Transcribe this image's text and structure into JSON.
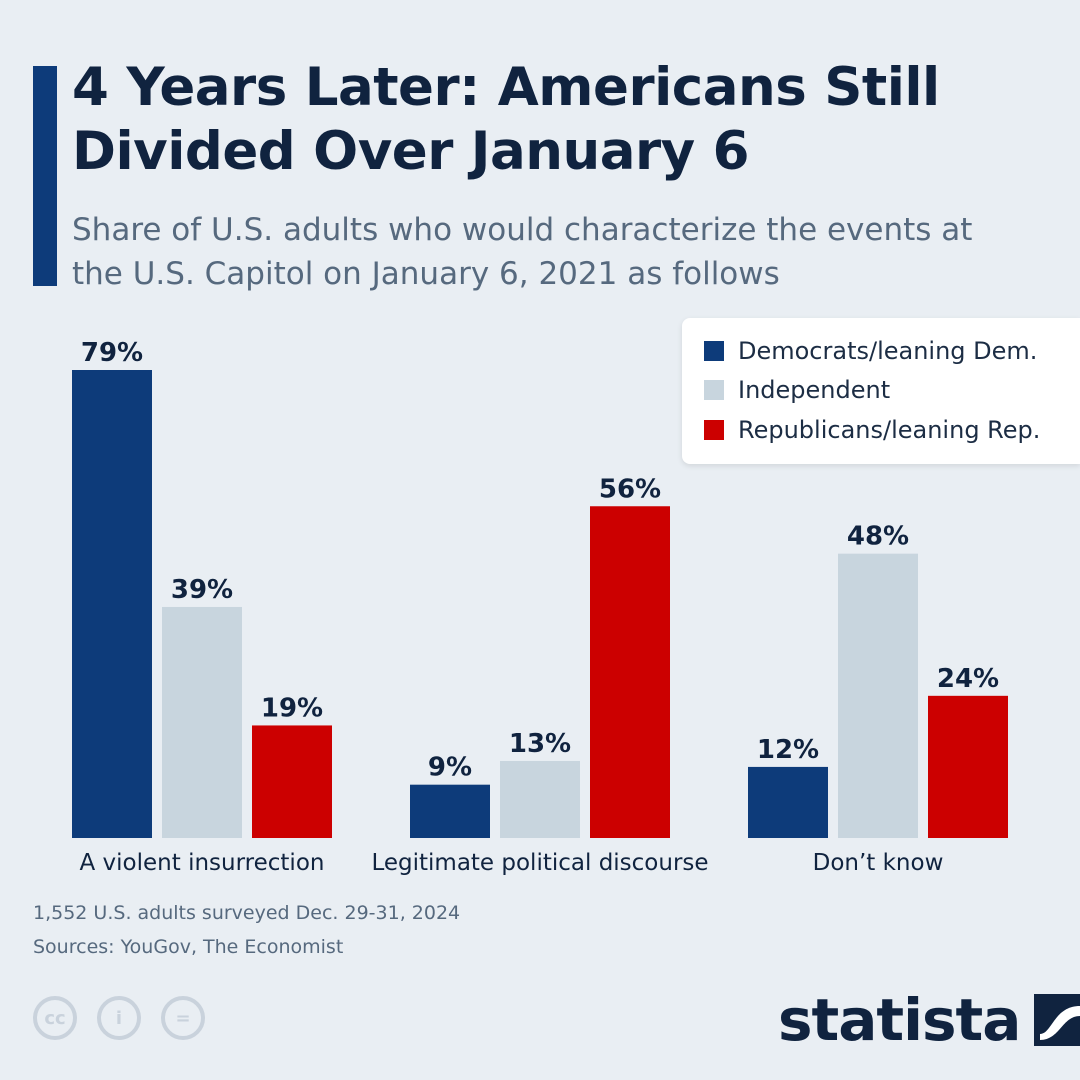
{
  "header": {
    "title": "4 Years Later: Americans Still Divided Over January 6",
    "subtitle": "Share of U.S. adults who would characterize the events at the U.S. Capitol on January 6, 2021 as follows"
  },
  "legend": {
    "items": [
      {
        "label": "Democrats/leaning Dem.",
        "color": "#0d3b7a"
      },
      {
        "label": "Independent",
        "color": "#c8d5de"
      },
      {
        "label": "Republicans/leaning Rep.",
        "color": "#cc0000"
      }
    ]
  },
  "chart_data": {
    "type": "bar",
    "title": "4 Years Later: Americans Still Divided Over January 6",
    "categories": [
      "A violent insurrection",
      "Legitimate political discourse",
      "Don’t know"
    ],
    "series": [
      {
        "name": "Democrats/leaning Dem.",
        "color": "#0d3b7a",
        "values": [
          79,
          9,
          12
        ]
      },
      {
        "name": "Independent",
        "color": "#c8d5de",
        "values": [
          39,
          13,
          48
        ]
      },
      {
        "name": "Republicans/leaning Rep.",
        "color": "#cc0000",
        "values": [
          19,
          56,
          24
        ]
      }
    ],
    "value_suffix": "%",
    "ylim": [
      0,
      79
    ],
    "xlabel": "",
    "ylabel": "",
    "grid": false,
    "legend_position": "top-right"
  },
  "footer": {
    "survey_note": "1,552 U.S. adults surveyed Dec. 29-31, 2024",
    "sources": "Sources: YouGov, The Economist",
    "license_icons": [
      "cc",
      "i",
      "="
    ],
    "brand": "statista"
  }
}
